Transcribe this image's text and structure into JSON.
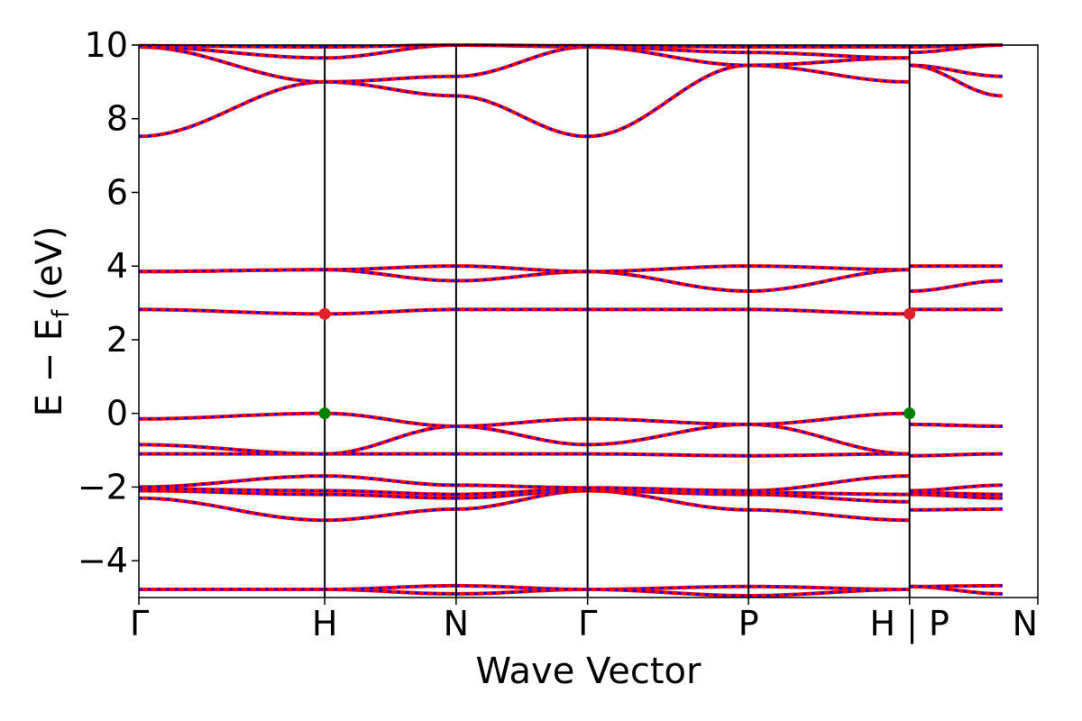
{
  "chart_data": {
    "type": "line",
    "title": "",
    "xlabel": "Wave Vector",
    "ylabel": "E − E",
    "ylabel_subscript": "f",
    "ylabel_unit": "(eV)",
    "ylim": [
      -5,
      10
    ],
    "yticks": [
      -4,
      -2,
      0,
      2,
      4,
      6,
      8,
      10
    ],
    "ytick_labels": [
      "−4",
      "−2",
      "0",
      "2",
      "4",
      "6",
      "8",
      "10"
    ],
    "xlim": [
      0,
      6.84
    ],
    "kpoints": [
      0,
      1.4142,
      2.4142,
      3.4142,
      4.6389,
      5.8637,
      6.5708
    ],
    "xtick_positions": [
      0,
      1.4142,
      2.4142,
      3.4142,
      4.6389,
      5.8637,
      6.84
    ],
    "xtick_labels": [
      "Γ",
      "H",
      "N",
      "Γ",
      "P",
      "H | P",
      "N"
    ],
    "grid": false,
    "colors": {
      "band": "#ff0000",
      "dash": "#0000ff",
      "vbm": "#008000",
      "cbm": "#e0202a",
      "axis": "#000000"
    },
    "segments": [
      "Γ-H",
      "H-N",
      "N-Γ",
      "Γ-P",
      "P-H",
      "P-N"
    ],
    "bands": [
      {
        "name": "band-1",
        "values": [
          [
            -4.78,
            -4.78
          ],
          [
            -4.78,
            -4.9
          ],
          [
            -4.9,
            -4.78
          ],
          [
            -4.78,
            -4.7
          ],
          [
            -4.7,
            -4.78
          ],
          [
            -4.7,
            -4.9
          ]
        ]
      },
      {
        "name": "band-2",
        "values": [
          [
            -4.78,
            -4.78
          ],
          [
            -4.78,
            -4.68
          ],
          [
            -4.68,
            -4.78
          ],
          [
            -4.78,
            -4.95
          ],
          [
            -4.95,
            -4.78
          ],
          [
            -4.7,
            -4.68
          ]
        ]
      },
      {
        "name": "band-3",
        "values": [
          [
            -2.3,
            -2.9
          ],
          [
            -2.9,
            -2.6
          ],
          [
            -2.6,
            -2.1
          ],
          [
            -2.1,
            -2.62
          ],
          [
            -2.62,
            -2.9
          ],
          [
            -2.62,
            -2.6
          ]
        ]
      },
      {
        "name": "band-4",
        "values": [
          [
            -2.1,
            -2.2
          ],
          [
            -2.2,
            -2.3
          ],
          [
            -2.3,
            -2.1
          ],
          [
            -2.1,
            -2.2
          ],
          [
            -2.2,
            -2.4
          ],
          [
            -2.2,
            -2.3
          ]
        ]
      },
      {
        "name": "band-5",
        "values": [
          [
            -2.05,
            -2.1
          ],
          [
            -2.1,
            -2.2
          ],
          [
            -2.2,
            -2.05
          ],
          [
            -2.05,
            -2.15
          ],
          [
            -2.15,
            -2.2
          ],
          [
            -2.15,
            -2.2
          ]
        ]
      },
      {
        "name": "band-6",
        "values": [
          [
            -2.0,
            -1.7
          ],
          [
            -1.7,
            -1.95
          ],
          [
            -1.95,
            -2.02
          ],
          [
            -2.02,
            -2.1
          ],
          [
            -2.1,
            -1.7
          ],
          [
            -2.1,
            -1.95
          ]
        ]
      },
      {
        "name": "band-7",
        "values": [
          [
            -1.1,
            -1.1
          ],
          [
            -1.1,
            -1.1
          ],
          [
            -1.1,
            -1.1
          ],
          [
            -1.1,
            -1.15
          ],
          [
            -1.15,
            -1.1
          ],
          [
            -1.15,
            -1.1
          ]
        ]
      },
      {
        "name": "band-8",
        "values": [
          [
            -0.85,
            -1.1
          ],
          [
            -1.1,
            -0.35
          ],
          [
            -0.35,
            -0.85
          ],
          [
            -0.85,
            -0.3
          ],
          [
            -0.3,
            -1.1
          ],
          [
            -0.3,
            -0.35
          ]
        ]
      },
      {
        "name": "band-9",
        "values": [
          [
            -0.15,
            0.0
          ],
          [
            0.0,
            -0.35
          ],
          [
            -0.35,
            -0.15
          ],
          [
            -0.15,
            -0.3
          ],
          [
            -0.3,
            0.0
          ],
          [
            -0.3,
            -0.35
          ]
        ]
      },
      {
        "name": "band-10",
        "values": [
          [
            2.82,
            2.7
          ],
          [
            2.7,
            2.82
          ],
          [
            2.82,
            2.82
          ],
          [
            2.82,
            2.82
          ],
          [
            2.82,
            2.7
          ],
          [
            2.82,
            2.82
          ]
        ]
      },
      {
        "name": "band-11",
        "values": [
          [
            3.85,
            3.9
          ],
          [
            3.9,
            3.6
          ],
          [
            3.6,
            3.85
          ],
          [
            3.85,
            3.32
          ],
          [
            3.32,
            3.9
          ],
          [
            3.32,
            3.6
          ]
        ]
      },
      {
        "name": "band-12",
        "values": [
          [
            3.85,
            3.9
          ],
          [
            3.9,
            4.0
          ],
          [
            4.0,
            3.85
          ],
          [
            3.85,
            4.0
          ],
          [
            4.0,
            3.9
          ],
          [
            4.0,
            4.0
          ]
        ]
      },
      {
        "name": "band-13",
        "values": [
          [
            7.52,
            9.0
          ],
          [
            9.0,
            8.62
          ],
          [
            8.62,
            7.52
          ],
          [
            7.52,
            9.45
          ],
          [
            9.45,
            9.0
          ],
          [
            9.45,
            8.62
          ]
        ]
      },
      {
        "name": "band-14",
        "values": [
          [
            9.95,
            9.0
          ],
          [
            9.0,
            9.15
          ],
          [
            9.15,
            9.95
          ],
          [
            9.95,
            9.45
          ],
          [
            9.45,
            9.65
          ],
          [
            9.45,
            9.15
          ]
        ]
      },
      {
        "name": "band-15",
        "values": [
          [
            9.95,
            9.65
          ],
          [
            9.65,
            10.0
          ],
          [
            10.0,
            9.95
          ],
          [
            9.95,
            9.8
          ],
          [
            9.8,
            9.65
          ],
          [
            9.8,
            10.0
          ]
        ]
      },
      {
        "name": "band-16",
        "values": [
          [
            9.98,
            9.95
          ],
          [
            9.95,
            10.0
          ],
          [
            10.0,
            9.98
          ],
          [
            9.98,
            9.95
          ],
          [
            9.95,
            9.95
          ],
          [
            9.95,
            10.0
          ]
        ]
      }
    ],
    "points": [
      {
        "name": "vbm-H",
        "x": 1.4142,
        "y": 0.0,
        "color": "#008000"
      },
      {
        "name": "vbm-H2",
        "x": 5.8637,
        "y": 0.0,
        "color": "#008000"
      },
      {
        "name": "cbm-H",
        "x": 1.4142,
        "y": 2.7,
        "color": "#e0202a"
      },
      {
        "name": "cbm-H2",
        "x": 5.8637,
        "y": 2.7,
        "color": "#e0202a"
      }
    ]
  }
}
